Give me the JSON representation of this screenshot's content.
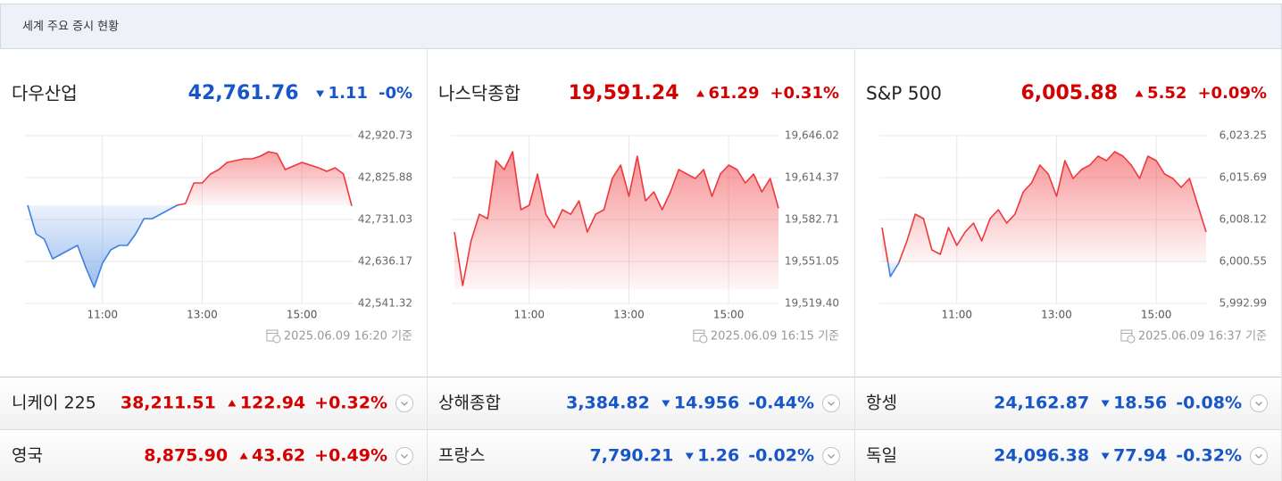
{
  "header": {
    "title": "세계 주요 증시 현황"
  },
  "colors": {
    "up": "#d40000",
    "down": "#1656c9",
    "up_line": "#f0373c",
    "down_line": "#3d7fe0"
  },
  "indices": [
    {
      "name": "다우산업",
      "price": "42,761.76",
      "change": "1.11",
      "rate": "-0%",
      "direction": "down",
      "timestamp": "2025.06.09 16:20 기준",
      "chart": {
        "type": "line",
        "x": [
          570,
          580,
          590,
          600,
          610,
          620,
          630,
          640,
          650,
          660,
          670,
          680,
          690,
          700,
          710,
          720,
          730,
          740,
          750,
          760,
          770,
          780,
          790,
          800,
          810,
          820,
          830,
          840,
          850,
          860,
          870,
          880,
          890,
          900,
          910,
          920,
          930,
          940,
          950,
          960
        ],
        "values": [
          42763.3,
          42698.7,
          42686.6,
          42642.2,
          42652.3,
          42662.4,
          42672.5,
          42622.0,
          42577.6,
          42632.1,
          42662.4,
          42672.5,
          42672.5,
          42698.7,
          42733.0,
          42733.0,
          42743.1,
          42753.2,
          42763.3,
          42767.3,
          42813.7,
          42813.7,
          42833.9,
          42844.0,
          42860.2,
          42864.2,
          42868.2,
          42868.2,
          42874.3,
          42884.4,
          42880.3,
          42844.0,
          42852.1,
          42860.2,
          42854.1,
          42848.1,
          42840.0,
          42848.1,
          42833.9,
          42761.8
        ],
        "xlim": [
          570,
          960
        ],
        "xticks": [
          {
            "value": 660,
            "label": "11:00"
          },
          {
            "value": 780,
            "label": "13:00"
          },
          {
            "value": 900,
            "label": "15:00"
          }
        ],
        "ylim": [
          42541.32,
          42920.73
        ],
        "yticks": [
          {
            "value": 42920.73,
            "label": "42,920.73"
          },
          {
            "value": 42825.88,
            "label": "42,825.88"
          },
          {
            "value": 42731.03,
            "label": "42,731.03"
          },
          {
            "value": 42636.17,
            "label": "42,636.17"
          },
          {
            "value": 42541.32,
            "label": "42,541.32"
          }
        ],
        "grid": true
      }
    },
    {
      "name": "나스닥종합",
      "price": "19,591.24",
      "change": "61.29",
      "rate": "+0.31%",
      "direction": "up",
      "timestamp": "2025.06.09 16:15 기준",
      "chart": {
        "type": "line",
        "x": [
          570,
          580,
          590,
          600,
          610,
          620,
          630,
          640,
          650,
          660,
          670,
          680,
          690,
          700,
          710,
          720,
          730,
          740,
          750,
          760,
          770,
          780,
          790,
          800,
          810,
          820,
          830,
          840,
          850,
          860,
          870,
          880,
          890,
          900,
          910,
          920,
          930,
          940,
          950,
          960
        ],
        "values": [
          19573.3,
          19532.9,
          19566.5,
          19586.7,
          19583.4,
          19627.1,
          19620.4,
          19633.9,
          19590.1,
          19593.5,
          19617.0,
          19586.7,
          19576.6,
          19590.1,
          19586.7,
          19596.8,
          19573.3,
          19586.7,
          19590.1,
          19613.7,
          19623.8,
          19600.2,
          19630.5,
          19596.8,
          19603.6,
          19590.1,
          19603.6,
          19620.4,
          19617.0,
          19613.7,
          19620.4,
          19600.2,
          19617.0,
          19623.8,
          19620.4,
          19610.3,
          19617.0,
          19603.6,
          19613.7,
          19591.2
        ],
        "xlim": [
          570,
          960
        ],
        "xticks": [
          {
            "value": 660,
            "label": "11:00"
          },
          {
            "value": 780,
            "label": "13:00"
          },
          {
            "value": 900,
            "label": "15:00"
          }
        ],
        "ylim": [
          19519.4,
          19646.02
        ],
        "yticks": [
          {
            "value": 19646.02,
            "label": "19,646.02"
          },
          {
            "value": 19614.37,
            "label": "19,614.37"
          },
          {
            "value": 19582.71,
            "label": "19,582.71"
          },
          {
            "value": 19551.05,
            "label": "19,551.05"
          },
          {
            "value": 19519.4,
            "label": "19,519.40"
          }
        ],
        "grid": true
      }
    },
    {
      "name": "S&P 500",
      "price": "6,005.88",
      "change": "5.52",
      "rate": "+0.09%",
      "direction": "up",
      "timestamp": "2025.06.09 16:37 기준",
      "chart": {
        "type": "line",
        "x": [
          570,
          580,
          590,
          600,
          610,
          620,
          630,
          640,
          650,
          660,
          670,
          680,
          690,
          700,
          710,
          720,
          730,
          740,
          750,
          760,
          770,
          780,
          790,
          800,
          810,
          820,
          830,
          840,
          850,
          860,
          870,
          880,
          890,
          900,
          910,
          920,
          930,
          940,
          950,
          960
        ],
        "values": [
          6006.67,
          5997.82,
          6000.23,
          6004.26,
          6009.09,
          6008.28,
          6002.65,
          6001.84,
          6006.67,
          6003.45,
          6005.87,
          6007.48,
          6004.26,
          6008.28,
          6009.89,
          6007.48,
          6009.09,
          6013.11,
          6014.72,
          6017.94,
          6016.33,
          6012.3,
          6018.74,
          6015.52,
          6017.13,
          6017.94,
          6019.55,
          6018.74,
          6020.35,
          6019.55,
          6017.94,
          6015.52,
          6019.55,
          6018.74,
          6016.33,
          6015.52,
          6013.91,
          6015.52,
          6010.7,
          6005.88
        ],
        "xlim": [
          570,
          960
        ],
        "xticks": [
          {
            "value": 660,
            "label": "11:00"
          },
          {
            "value": 780,
            "label": "13:00"
          },
          {
            "value": 900,
            "label": "15:00"
          }
        ],
        "ylim": [
          5992.99,
          6023.25
        ],
        "yticks": [
          {
            "value": 6023.25,
            "label": "6,023.25"
          },
          {
            "value": 6015.69,
            "label": "6,015.69"
          },
          {
            "value": 6008.12,
            "label": "6,008.12"
          },
          {
            "value": 6000.55,
            "label": "6,000.55"
          },
          {
            "value": 5992.99,
            "label": "5,992.99"
          }
        ],
        "grid": true
      }
    }
  ],
  "rows": [
    {
      "name": "니케이 225",
      "price": "38,211.51",
      "change": "122.94",
      "rate": "+0.32%",
      "direction": "up"
    },
    {
      "name": "상해종합",
      "price": "3,384.82",
      "change": "14.956",
      "rate": "-0.44%",
      "direction": "down"
    },
    {
      "name": "항셍",
      "price": "24,162.87",
      "change": "18.56",
      "rate": "-0.08%",
      "direction": "down"
    },
    {
      "name": "영국",
      "price": "8,875.90",
      "change": "43.62",
      "rate": "+0.49%",
      "direction": "up"
    },
    {
      "name": "프랑스",
      "price": "7,790.21",
      "change": "1.26",
      "rate": "-0.02%",
      "direction": "down"
    },
    {
      "name": "독일",
      "price": "24,096.38",
      "change": "77.94",
      "rate": "-0.32%",
      "direction": "down"
    }
  ]
}
